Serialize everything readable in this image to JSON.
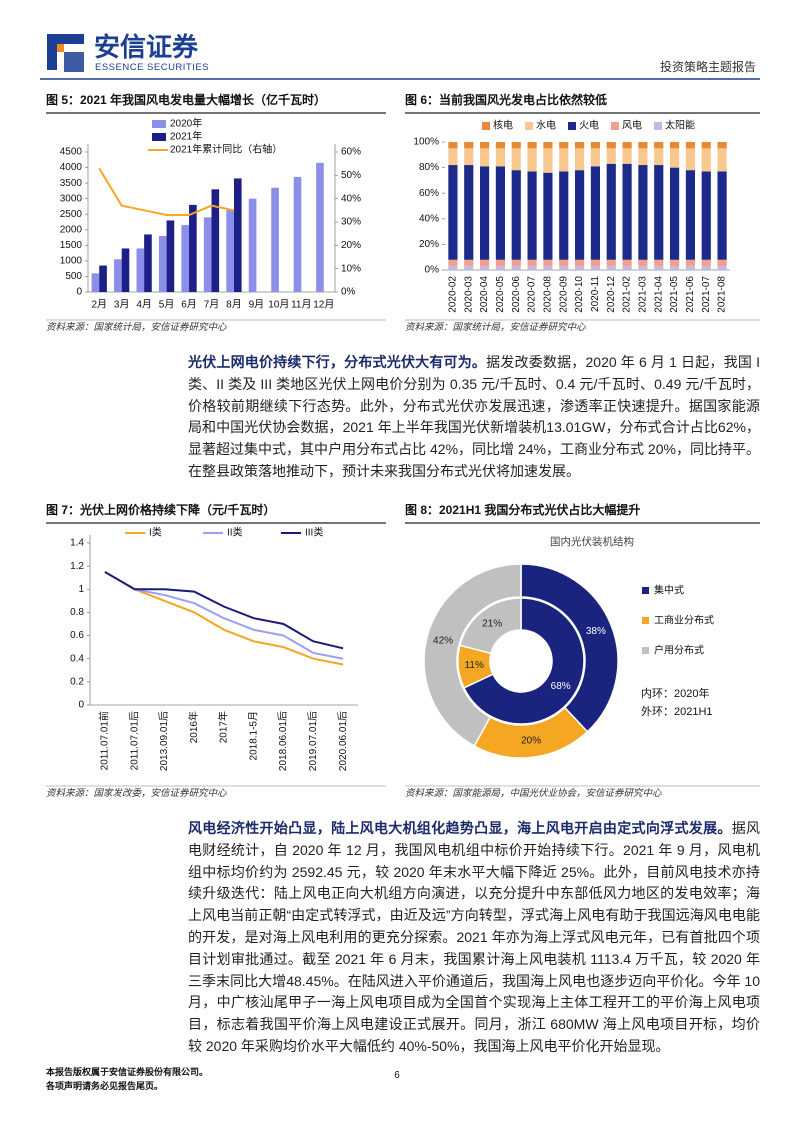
{
  "header": {
    "logo_cn": "安信证券",
    "logo_en": "ESSENCE SECURITIES",
    "report_type": "投资策略主题报告"
  },
  "chart_data": [
    {
      "type": "bar",
      "title": "图 5：2021 年我国风电发电量大幅增长（亿千瓦时）",
      "source": "资料来源：国家统计局，安信证券研究中心",
      "categories": [
        "2月",
        "3月",
        "4月",
        "5月",
        "6月",
        "7月",
        "8月",
        "9月",
        "10月",
        "11月",
        "12月"
      ],
      "series": [
        {
          "name": "2020年",
          "color": "#8c8fe9",
          "values": [
            600,
            1050,
            1400,
            1800,
            2150,
            2400,
            2650,
            3000,
            3350,
            3700,
            4150
          ]
        },
        {
          "name": "2021年",
          "color": "#1d1f86",
          "values": [
            850,
            1400,
            1850,
            2300,
            2800,
            3300,
            3650,
            null,
            null,
            null,
            null
          ]
        },
        {
          "name": "2021年累计同比（右轴）",
          "color": "#f5a623",
          "type": "line",
          "axis": "y2",
          "values": [
            53,
            37,
            35,
            33,
            33,
            37,
            35,
            null,
            null,
            null,
            null
          ]
        }
      ],
      "ylim": [
        0,
        4500
      ],
      "yticks": [
        0,
        500,
        1000,
        1500,
        2000,
        2500,
        3000,
        3500,
        4000,
        4500
      ],
      "y2lim": [
        0,
        60
      ],
      "y2ticks": [
        {
          "value": 0,
          "label": "0%"
        },
        {
          "value": 10,
          "label": "10%"
        },
        {
          "value": 20,
          "label": "20%"
        },
        {
          "value": 30,
          "label": "30%"
        },
        {
          "value": 40,
          "label": "40%"
        },
        {
          "value": 50,
          "label": "50%"
        },
        {
          "value": 60,
          "label": "60%"
        }
      ]
    },
    {
      "type": "bar",
      "stacked": true,
      "title": "图 6：当前我国风光发电占比依然较低",
      "source": "资料来源：国家统计局，安信证券研究中心",
      "categories": [
        "2020-02",
        "2020-03",
        "2020-04",
        "2020-05",
        "2020-06",
        "2020-07",
        "2020-08",
        "2020-09",
        "2020-10",
        "2020-11",
        "2020-12",
        "2021-02",
        "2021-03",
        "2021-04",
        "2021-05",
        "2021-06",
        "2021-07",
        "2021-08"
      ],
      "series": [
        {
          "name": "核电",
          "color": "#e8893a",
          "values": [
            5,
            5,
            5,
            5,
            5,
            5,
            5,
            5,
            5,
            5,
            5,
            5,
            5,
            5,
            5,
            5,
            5,
            5
          ]
        },
        {
          "name": "水电",
          "color": "#f7c98f",
          "values": [
            13,
            13,
            14,
            14,
            17,
            18,
            19,
            18,
            17,
            14,
            12,
            12,
            13,
            13,
            15,
            17,
            18,
            18
          ]
        },
        {
          "name": "火电",
          "color": "#1c2a8a",
          "values": [
            74,
            74,
            73,
            73,
            70,
            69,
            68,
            69,
            70,
            73,
            75,
            75,
            74,
            74,
            72,
            70,
            69,
            69
          ]
        },
        {
          "name": "风电",
          "color": "#f0a090",
          "values": [
            5,
            5,
            5,
            5,
            5,
            5,
            5,
            5,
            5,
            5,
            5,
            5,
            5,
            5,
            5,
            5,
            5,
            5
          ]
        },
        {
          "name": "太阳能",
          "color": "#c5b8e8",
          "values": [
            3,
            3,
            3,
            3,
            3,
            3,
            3,
            3,
            3,
            3,
            3,
            3,
            3,
            3,
            3,
            3,
            3,
            3
          ]
        }
      ],
      "ylim": [
        0,
        100
      ],
      "yticks": [
        {
          "value": 0,
          "label": "0%"
        },
        {
          "value": 20,
          "label": "20%"
        },
        {
          "value": 40,
          "label": "40%"
        },
        {
          "value": 60,
          "label": "60%"
        },
        {
          "value": 80,
          "label": "80%"
        },
        {
          "value": 100,
          "label": "100%"
        }
      ]
    },
    {
      "type": "line",
      "title": "图 7：光伏上网价格持续下降（元/千瓦时）",
      "source": "资料来源：国家发改委，安信证券研究中心",
      "categories": [
        "2011.07.01前",
        "2011.07.01后",
        "2013.09.01后",
        "2016年",
        "2017年",
        "2018.1-5月",
        "2018.06.01后",
        "2019.07.01后",
        "2020.06.01后"
      ],
      "series": [
        {
          "name": "I类",
          "color": "#f5a623",
          "values": [
            1.15,
            1.0,
            0.9,
            0.8,
            0.65,
            0.55,
            0.5,
            0.4,
            0.35
          ]
        },
        {
          "name": "II类",
          "color": "#9b9ff0",
          "values": [
            1.15,
            1.0,
            0.95,
            0.88,
            0.75,
            0.65,
            0.6,
            0.45,
            0.4
          ]
        },
        {
          "name": "III类",
          "color": "#1a1a7a",
          "values": [
            1.15,
            1.0,
            1.0,
            0.98,
            0.85,
            0.75,
            0.7,
            0.55,
            0.49
          ]
        }
      ],
      "ylim": [
        0,
        1.4
      ],
      "yticks": [
        0,
        0.2,
        0.4,
        0.6,
        0.8,
        1,
        1.2,
        1.4
      ]
    },
    {
      "type": "donut",
      "title": "图 8：2021H1 我国分布式光伏占比大幅提升",
      "source": "资料来源：国家能源局，中国光伏业协会，安信证券研究中心",
      "subtitle": "国内光伏装机结构",
      "categories": [
        "集中式",
        "工商业分布式",
        "户用分布式"
      ],
      "colors": [
        "#1a237e",
        "#f5a623",
        "#c0c0c0"
      ],
      "series": [
        {
          "name": "内环：2020年",
          "values": [
            68,
            11,
            21
          ],
          "value_labels": [
            "68%",
            "11%",
            "21%"
          ]
        },
        {
          "name": "外环：2021H1",
          "values": [
            38,
            20,
            42
          ],
          "value_labels": [
            "38%",
            "20%",
            "42%"
          ]
        }
      ]
    }
  ],
  "paragraphs": [
    {
      "lead": "光伏上网电价持续下行，分布式光伏大有可为。",
      "text": "据发改委数据，2020 年 6 月 1 日起，我国 I 类、II 类及 III 类地区光伏上网电价分别为 0.35 元/千瓦时、0.4 元/千瓦时、0.49 元/千瓦时，价格较前期继续下行态势。此外，分布式光伏亦发展迅速，渗透率正快速提升。据国家能源局和中国光伏协会数据，2021 年上半年我国光伏新增装机13.01GW，分布式合计占比62%，显著超过集中式，其中户用分布式占比 42%，同比增 24%，工商业分布式 20%，同比持平。在整县政策落地推动下，预计未来我国分布式光伏将加速发展。"
    },
    {
      "lead": "风电经济性开始凸显，陆上风电大机组化趋势凸显，海上风电开启由定式向浮式发展。",
      "text": "据风电财经统计，自 2020 年 12 月，我国风电机组中标价开始持续下行。2021 年 9 月，风电机组中标均价约为 2592.45 元，较 2020 年末水平大幅下降近 25%。此外，目前风电技术亦持续升级迭代：陆上风电正向大机组方向演进，以充分提升中东部低风力地区的发电效率；海上风电当前正朝“由定式转浮式，由近及远”方向转型，浮式海上风电有助于我国远海风电电能的开发，是对海上风电利用的更充分探索。2021 年亦为海上浮式风电元年，已有首批四个项目计划审批通过。截至 2021 年 6 月末，我国累计海上风电装机 1113.4 万千瓦，较 2020 年三季末同比大增48.45%。在陆风进入平价通道后，我国海上风电也逐步迈向平价化。今年 10 月，中广核汕尾甲子一海上风电项目成为全国首个实现海上主体工程开工的平价海上风电项目，标志着我国平价海上风电建设正式展开。同月，浙江 680MW 海上风电项目开标，均价较 2020 年采购均价水平大幅低约 40%-50%，我国海上风电平价化开始显现。"
    }
  ],
  "footer": {
    "lines": [
      "本报告版权属于安信证券股份有限公司。",
      "各项声明请务必见报告尾页。"
    ],
    "page": 6
  }
}
